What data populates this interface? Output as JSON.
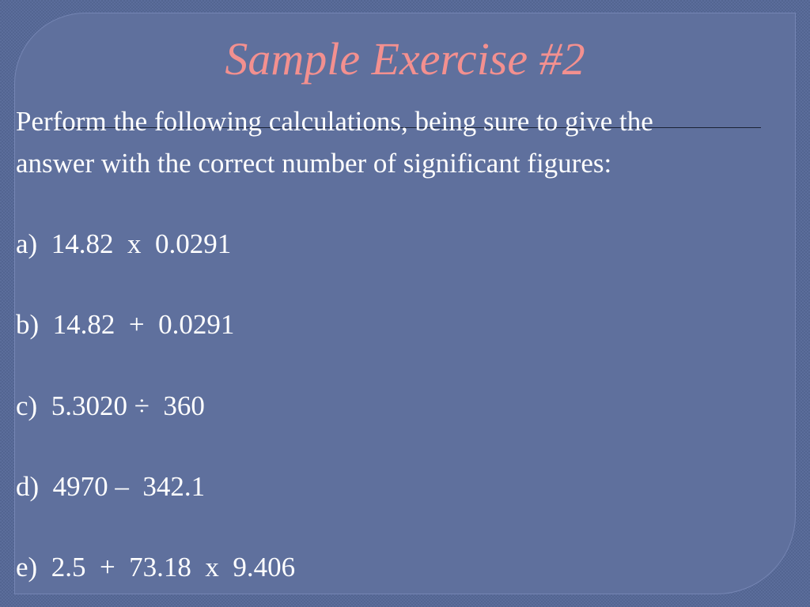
{
  "slide": {
    "title": "Sample Exercise #2",
    "intro_line1": "Perform the following calculations, being sure to give the",
    "intro_line2": "answer with the correct number of significant figures:",
    "items": [
      "a)  14.82  x  0.0291",
      "b)  14.82  +  0.0291",
      "c)  5.3020 ÷  360",
      "d)  4970 –  342.1",
      "e)  2.5  +  73.18  x  9.406"
    ]
  },
  "colors": {
    "background": "#586a97",
    "panel": "#5f709d",
    "title": "#f3908f",
    "text": "#ffffff"
  }
}
